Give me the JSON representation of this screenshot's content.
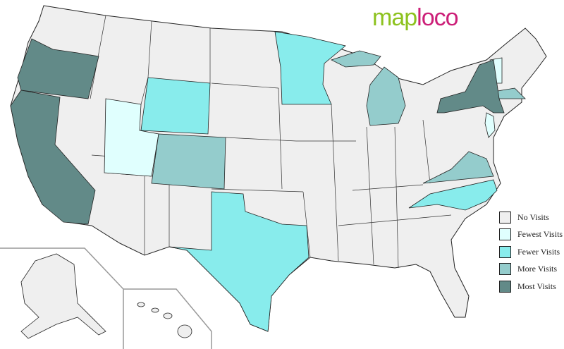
{
  "logo": {
    "part1": "map",
    "part2": "loco",
    "color1": "#8dc21f",
    "color2": "#cc1f78"
  },
  "legend": [
    {
      "label": "No Visits",
      "color": "#efefef"
    },
    {
      "label": "Fewest Visits",
      "color": "#e0fffe"
    },
    {
      "label": "Fewer Visits",
      "color": "#88ecec"
    },
    {
      "label": "More Visits",
      "color": "#94cccc"
    },
    {
      "label": "Most Visits",
      "color": "#628a88"
    }
  ],
  "visits": {
    "Fewest Visits": [
      "UT",
      "VT",
      "NJ"
    ],
    "Fewer Visits": [
      "WY",
      "MN",
      "TX",
      "NC"
    ],
    "More Visits": [
      "CO",
      "MI",
      "MA",
      "VA"
    ],
    "Most Visits": [
      "OR",
      "CA",
      "NY"
    ]
  }
}
